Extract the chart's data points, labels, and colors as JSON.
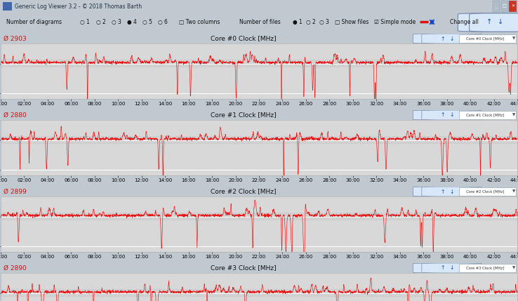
{
  "title_bar": "Generic Log Viewer 3.2 - © 2018 Thomas Barth",
  "panels": [
    {
      "title": "Core #0 Clock [MHz]",
      "avg": "2903",
      "label": "Core #0 Clock [MHz]"
    },
    {
      "title": "Core #1 Clock [MHz]",
      "avg": "2880",
      "label": "Core #1 Clock [MHz]"
    },
    {
      "title": "Core #2 Clock [MHz]",
      "avg": "2899",
      "label": "Core #2 Clock [MHz]"
    },
    {
      "title": "Core #3 Clock [MHz]",
      "avg": "2890",
      "label": "Core #3 Clock [MHz]"
    }
  ],
  "x_max_minutes": 44,
  "x_tick_step": 2,
  "y_min": 1800,
  "y_max": 3700,
  "y_ticks": [
    2000,
    3000
  ],
  "line_color": "#ee1111",
  "bg_panel_header": "#e0e8f0",
  "bg_plot": "#d8d8d8",
  "bg_plot_band": "#c8c8c8",
  "bg_titlebar": "#bccad8",
  "bg_toolbar": "#d8e4f0",
  "bg_outer": "#c0c8d0",
  "grid_color": "#ffffff",
  "title_font_size": 6.5,
  "tick_font_size": 5.0,
  "avg_font_size": 6.5,
  "label_font_size": 4.5,
  "dpi": 100
}
